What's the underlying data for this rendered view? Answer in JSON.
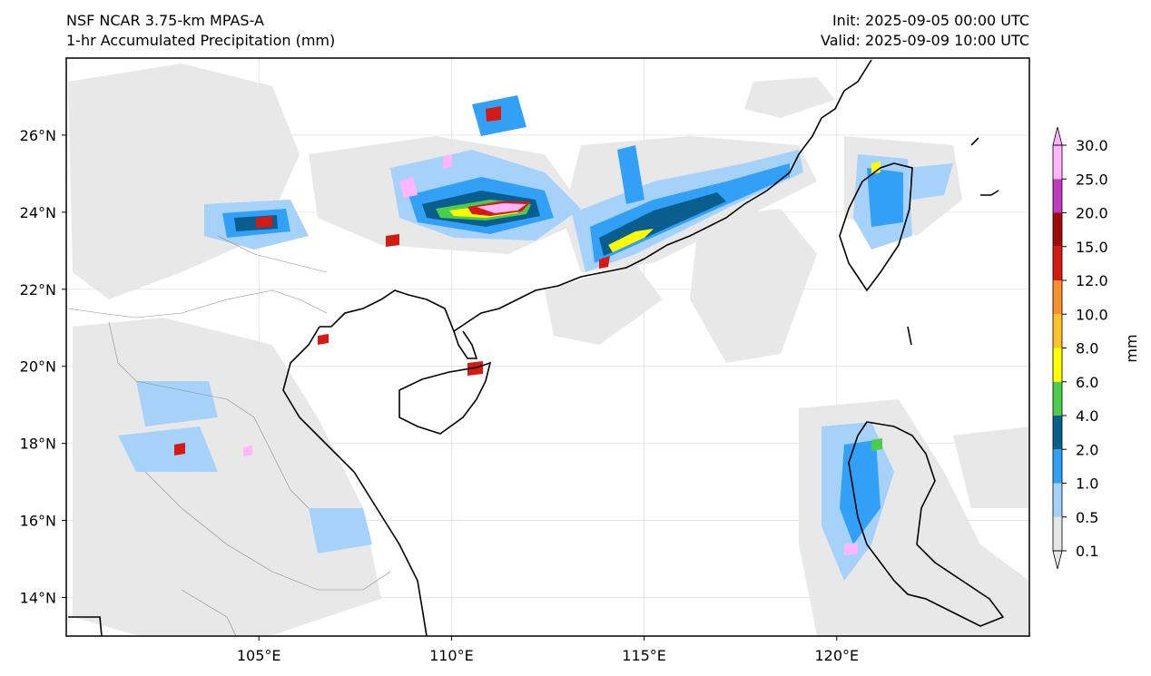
{
  "header": {
    "model": "NSF NCAR 3.75-km MPAS-A",
    "field": "1-hr Accumulated Precipitation (mm)",
    "init": "Init: 2025-09-05 00:00 UTC",
    "valid": "Valid: 2025-09-09 10:00 UTC"
  },
  "map": {
    "extent": {
      "lon": [
        100.0,
        125.0
      ],
      "lat": [
        13.0,
        28.0
      ]
    },
    "lon_ticks": [
      {
        "value": 105,
        "label": "105°E"
      },
      {
        "value": 110,
        "label": "110°E"
      },
      {
        "value": 115,
        "label": "115°E"
      },
      {
        "value": 120,
        "label": "120°E"
      }
    ],
    "lat_ticks": [
      {
        "value": 14,
        "label": "14°N"
      },
      {
        "value": 16,
        "label": "16°N"
      },
      {
        "value": 18,
        "label": "18°N"
      },
      {
        "value": 20,
        "label": "20°N"
      },
      {
        "value": 22,
        "label": "22°N"
      },
      {
        "value": 24,
        "label": "24°N"
      },
      {
        "value": 26,
        "label": "26°N"
      }
    ],
    "gridlines": true
  },
  "colorbar": {
    "unit": "mm",
    "levels": [
      "0.1",
      "0.5",
      "1.0",
      "2.0",
      "4.0",
      "6.0",
      "8.0",
      "10.0",
      "12.0",
      "15.0",
      "20.0",
      "25.0",
      "30.0"
    ],
    "colors": [
      "#e6e6e6",
      "#a6d2fa",
      "#33a0f7",
      "#0a5e8d",
      "#4ccc4c",
      "#ffff00",
      "#fcc42a",
      "#f6902c",
      "#d41a12",
      "#a00a0a",
      "#be3abe",
      "#ffb6ff"
    ],
    "extend": "both"
  }
}
